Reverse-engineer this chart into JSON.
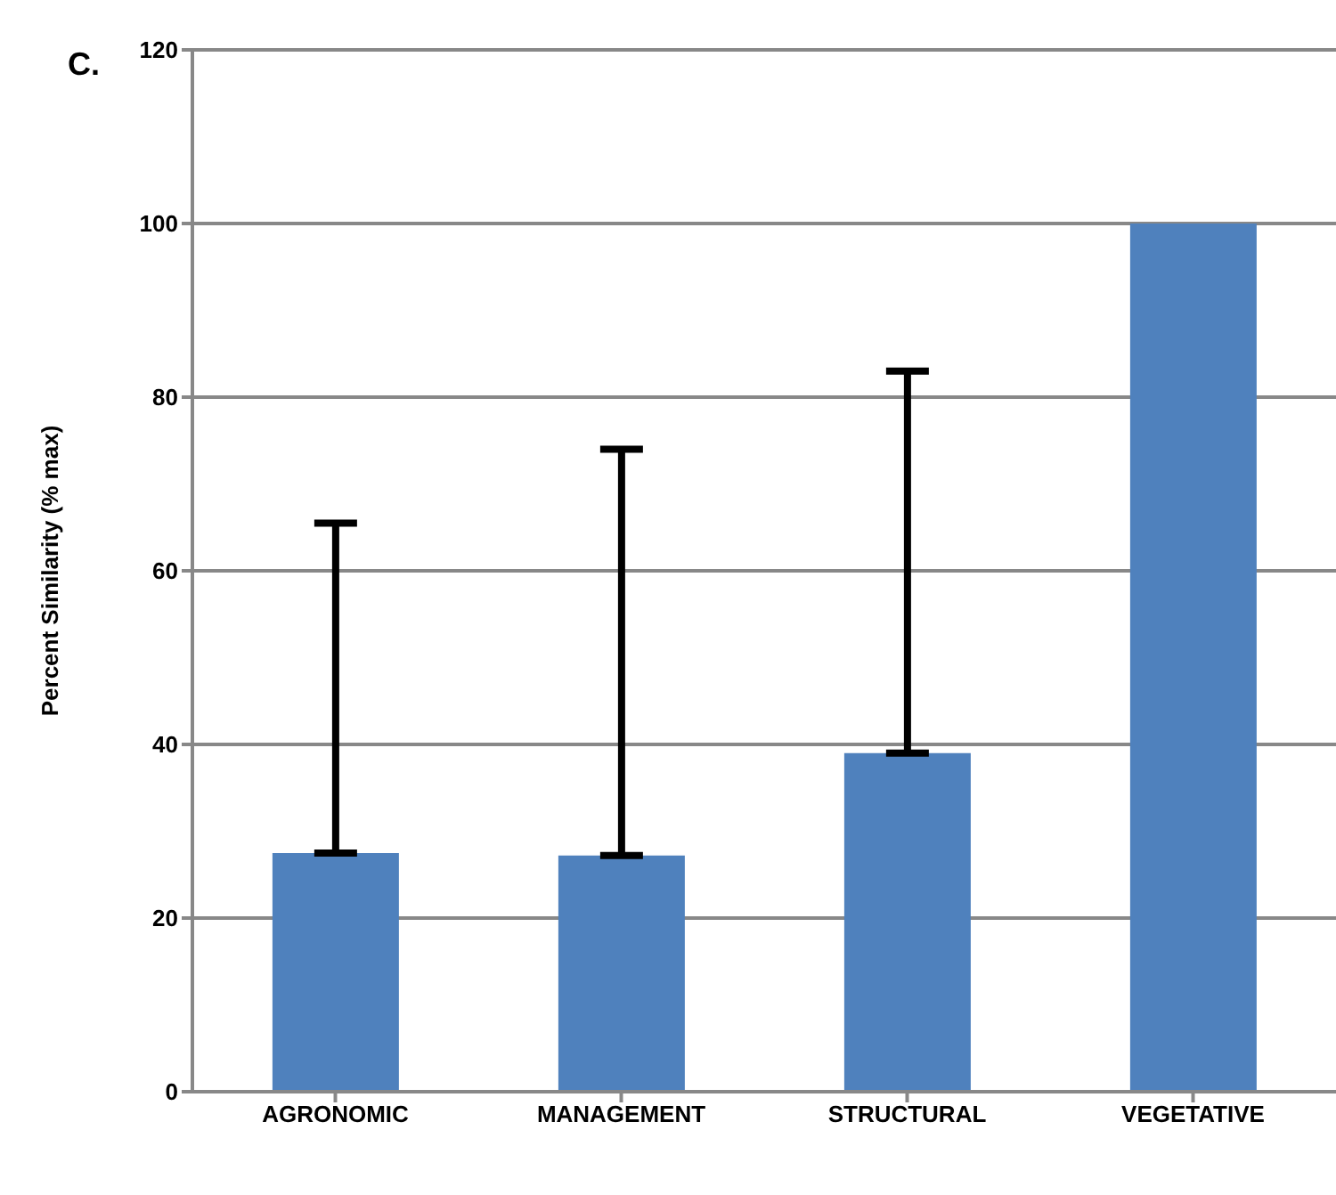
{
  "chart_data": {
    "type": "bar",
    "title": "C.",
    "ylabel": "Percent Similarity (% max)",
    "categories": [
      "AGRONOMIC",
      "MANAGEMENT",
      "STRUCTURAL",
      "VEGETATIVE"
    ],
    "values": [
      27.5,
      27.2,
      39,
      100
    ],
    "errors": [
      [
        27.5,
        65.5
      ],
      [
        27.2,
        74
      ],
      [
        39,
        83
      ],
      null
    ],
    "color": "#4f81bd",
    "ylim": [
      0,
      120
    ],
    "yticks": [
      0,
      20,
      40,
      60,
      80,
      100,
      120
    ],
    "grid": "y"
  }
}
